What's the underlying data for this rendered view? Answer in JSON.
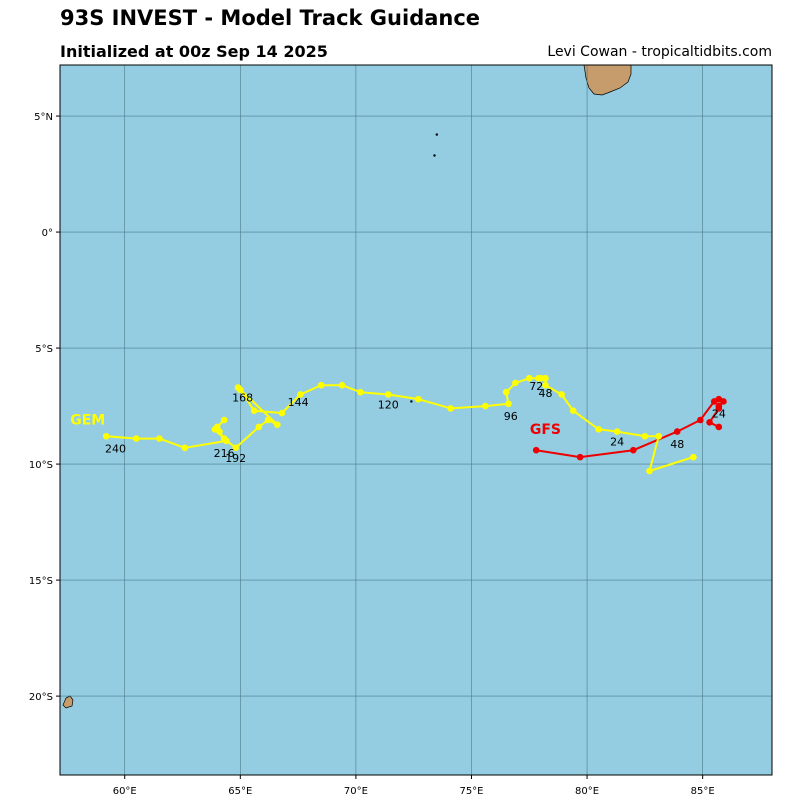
{
  "title": "93S INVEST - Model Track Guidance",
  "subtitle": "Initialized at 00z Sep 14 2025",
  "credit": "Levi Cowan - tropicaltidbits.com",
  "map": {
    "ocean_color": "#94cde2",
    "land_color": "#c69c6d",
    "lon_range": [
      57.2,
      88.0
    ],
    "lat_range": [
      -23.4,
      7.2
    ],
    "lon_ticks": [
      {
        "v": 60,
        "label": "60°E"
      },
      {
        "v": 65,
        "label": "65°E"
      },
      {
        "v": 70,
        "label": "70°E"
      },
      {
        "v": 75,
        "label": "75°E"
      },
      {
        "v": 80,
        "label": "80°E"
      },
      {
        "v": 85,
        "label": "85°E"
      }
    ],
    "lat_ticks": [
      {
        "v": 5,
        "label": "5°N"
      },
      {
        "v": 0,
        "label": "0°"
      },
      {
        "v": -5,
        "label": "5°S"
      },
      {
        "v": -10,
        "label": "10°S"
      },
      {
        "v": -15,
        "label": "15°S"
      },
      {
        "v": -20,
        "label": "20°S"
      }
    ]
  },
  "models": [
    {
      "name": "GFS",
      "color": "#ee0000",
      "label_at": {
        "lon": 78.2,
        "lat": -8.7
      },
      "track": [
        {
          "lon": 85.7,
          "lat": -8.4
        },
        {
          "lon": 85.3,
          "lat": -8.2
        },
        {
          "lon": 85.7,
          "lat": -7.6
        },
        {
          "lon": 85.7,
          "lat": -7.5
        },
        {
          "lon": 85.9,
          "lat": -7.3
        },
        {
          "lon": 85.7,
          "lat": -7.2
        },
        {
          "lon": 85.5,
          "lat": -7.3
        },
        {
          "lon": 84.9,
          "lat": -8.1
        },
        {
          "lon": 83.9,
          "lat": -8.6
        },
        {
          "lon": 82.0,
          "lat": -9.4
        },
        {
          "lon": 79.7,
          "lat": -9.7
        },
        {
          "lon": 77.8,
          "lat": -9.4
        }
      ],
      "hour_labels": [
        {
          "text": "24",
          "lon": 85.7,
          "lat": -8.0
        }
      ]
    },
    {
      "name": "GEM",
      "color": "#ffff00",
      "label_at": {
        "lon": 58.4,
        "lat": -8.3
      },
      "track": [
        {
          "lon": 84.6,
          "lat": -9.7
        },
        {
          "lon": 82.7,
          "lat": -10.3
        },
        {
          "lon": 83.1,
          "lat": -8.8
        },
        {
          "lon": 82.5,
          "lat": -8.8
        },
        {
          "lon": 81.3,
          "lat": -8.6
        },
        {
          "lon": 80.5,
          "lat": -8.5
        },
        {
          "lon": 79.4,
          "lat": -7.7
        },
        {
          "lon": 78.9,
          "lat": -7.0
        },
        {
          "lon": 78.2,
          "lat": -6.6
        },
        {
          "lon": 78.2,
          "lat": -6.3
        },
        {
          "lon": 78.0,
          "lat": -6.3
        },
        {
          "lon": 77.9,
          "lat": -6.3
        },
        {
          "lon": 77.5,
          "lat": -6.3
        },
        {
          "lon": 76.9,
          "lat": -6.5
        },
        {
          "lon": 76.5,
          "lat": -6.9
        },
        {
          "lon": 76.6,
          "lat": -7.4
        },
        {
          "lon": 75.6,
          "lat": -7.5
        },
        {
          "lon": 74.1,
          "lat": -7.6
        },
        {
          "lon": 72.7,
          "lat": -7.2
        },
        {
          "lon": 71.4,
          "lat": -7.0
        },
        {
          "lon": 70.2,
          "lat": -6.9
        },
        {
          "lon": 69.4,
          "lat": -6.6
        },
        {
          "lon": 68.5,
          "lat": -6.6
        },
        {
          "lon": 67.6,
          "lat": -7.0
        },
        {
          "lon": 66.8,
          "lat": -7.8
        },
        {
          "lon": 65.6,
          "lat": -7.7
        },
        {
          "lon": 65.0,
          "lat": -6.8
        },
        {
          "lon": 64.9,
          "lat": -6.7
        },
        {
          "lon": 66.6,
          "lat": -8.3
        },
        {
          "lon": 66.2,
          "lat": -8.1
        },
        {
          "lon": 65.8,
          "lat": -8.4
        },
        {
          "lon": 64.8,
          "lat": -9.3
        },
        {
          "lon": 64.3,
          "lat": -8.9
        },
        {
          "lon": 64.1,
          "lat": -8.6
        },
        {
          "lon": 64.0,
          "lat": -8.4
        },
        {
          "lon": 64.3,
          "lat": -8.1
        },
        {
          "lon": 63.9,
          "lat": -8.5
        },
        {
          "lon": 64.4,
          "lat": -9.0
        },
        {
          "lon": 62.6,
          "lat": -9.3
        },
        {
          "lon": 61.5,
          "lat": -8.9
        },
        {
          "lon": 60.5,
          "lat": -8.9
        },
        {
          "lon": 59.2,
          "lat": -8.8
        }
      ],
      "hour_labels": [
        {
          "text": "24",
          "lon": 81.3,
          "lat": -9.2
        },
        {
          "text": "48",
          "lon": 83.9,
          "lat": -9.3
        },
        {
          "text": "48",
          "lon": 78.2,
          "lat": -7.1
        },
        {
          "text": "72",
          "lon": 77.8,
          "lat": -6.8
        },
        {
          "text": "96",
          "lon": 76.7,
          "lat": -8.1
        },
        {
          "text": "120",
          "lon": 71.4,
          "lat": -7.6
        },
        {
          "text": "144",
          "lon": 67.5,
          "lat": -7.5
        },
        {
          "text": "168",
          "lon": 65.1,
          "lat": -7.3
        },
        {
          "text": "192",
          "lon": 64.8,
          "lat": -9.9
        },
        {
          "text": "216",
          "lon": 64.3,
          "lat": -9.7
        },
        {
          "text": "240",
          "lon": 59.6,
          "lat": -9.5
        }
      ]
    }
  ],
  "land_features": [
    {
      "name": "maldives-islet-1",
      "lon": 73.5,
      "lat": 4.2
    },
    {
      "name": "maldives-islet-2",
      "lon": 73.4,
      "lat": 3.3
    },
    {
      "name": "chagos-islet",
      "lon": 72.4,
      "lat": -7.3
    }
  ]
}
